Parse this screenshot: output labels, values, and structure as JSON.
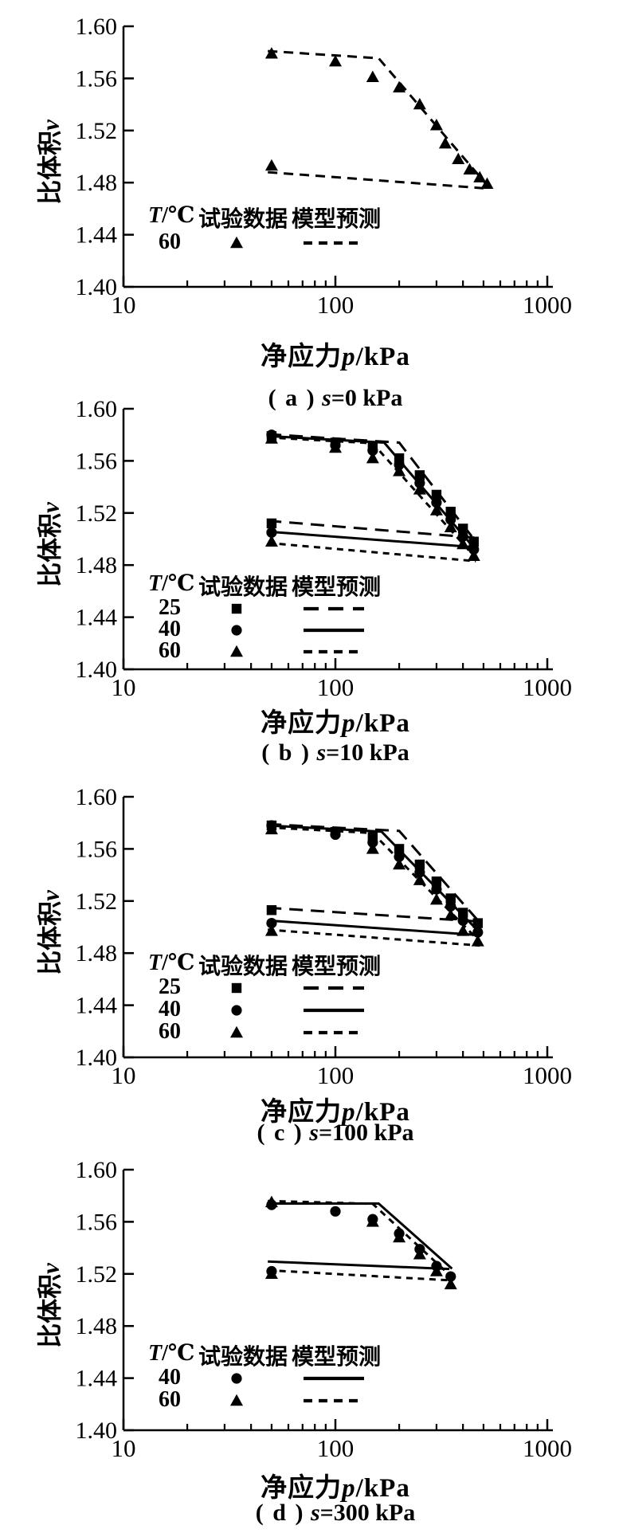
{
  "figure": {
    "background": "#ffffff",
    "ink": "#000000"
  },
  "axis": {
    "x_scale": "log",
    "x_range": [
      10,
      1000
    ],
    "y_range": [
      1.4,
      1.6
    ],
    "x_ticks": [
      "10",
      "100",
      "1000"
    ],
    "y_ticks": [
      "1.60",
      "1.56",
      "1.52",
      "1.48",
      "1.44",
      "1.40"
    ],
    "x_label_cn": "净应力",
    "x_label_var": "p",
    "x_label_unit": "/kPa",
    "y_label_cn": "比体积",
    "y_label_var": "v"
  },
  "legend_header": {
    "temp_var": "T",
    "temp_unit": "/℃",
    "data": "试验数据",
    "model": "模型预测"
  },
  "chart_data": [
    {
      "id": "a",
      "type": "line",
      "caption_bracket": "( a )",
      "caption_var": "s",
      "caption_rest": "=0 kPa",
      "suction_kPa": 0,
      "series": [
        {
          "temp": "60",
          "marker": "triangle",
          "line_style": "dashed",
          "exp_loading": [
            [
              50,
              1.579
            ],
            [
              100,
              1.573
            ],
            [
              150,
              1.561
            ],
            [
              200,
              1.553
            ],
            [
              250,
              1.54
            ],
            [
              300,
              1.524
            ],
            [
              330,
              1.51
            ],
            [
              380,
              1.498
            ],
            [
              430,
              1.49
            ],
            [
              480,
              1.484
            ],
            [
              520,
              1.479
            ]
          ],
          "exp_rebound": [
            [
              50,
              1.493
            ]
          ],
          "model_loading": [
            [
              48,
              1.581
            ],
            [
              160,
              1.5755
            ],
            [
              520,
              1.478
            ]
          ],
          "model_rebound": [
            [
              48,
              1.488
            ],
            [
              500,
              1.4757
            ]
          ]
        }
      ]
    },
    {
      "id": "b",
      "type": "line",
      "caption_bracket": "( b )",
      "caption_var": "s",
      "caption_rest": "=10 kPa",
      "suction_kPa": 10,
      "series": [
        {
          "temp": "25",
          "marker": "square",
          "line_style": "long-dash",
          "exp_loading": [
            [
              50,
              1.579
            ],
            [
              100,
              1.574
            ],
            [
              150,
              1.571
            ],
            [
              200,
              1.562
            ],
            [
              250,
              1.549
            ],
            [
              300,
              1.534
            ],
            [
              350,
              1.521
            ],
            [
              400,
              1.508
            ],
            [
              450,
              1.498
            ]
          ],
          "exp_rebound": [
            [
              50,
              1.512
            ]
          ],
          "model_loading": [
            [
              48,
              1.5805
            ],
            [
              200,
              1.574
            ],
            [
              460,
              1.498
            ]
          ],
          "model_rebound": [
            [
              48,
              1.514
            ],
            [
              460,
              1.501
            ]
          ]
        },
        {
          "temp": "40",
          "marker": "circle",
          "line_style": "solid",
          "exp_loading": [
            [
              50,
              1.58
            ],
            [
              100,
              1.572
            ],
            [
              150,
              1.568
            ],
            [
              200,
              1.557
            ],
            [
              250,
              1.543
            ],
            [
              300,
              1.528
            ],
            [
              350,
              1.515
            ],
            [
              400,
              1.502
            ],
            [
              450,
              1.492
            ]
          ],
          "exp_rebound": [
            [
              50,
              1.505
            ]
          ],
          "model_loading": [
            [
              48,
              1.579
            ],
            [
              170,
              1.574
            ],
            [
              455,
              1.4925
            ]
          ],
          "model_rebound": [
            [
              48,
              1.5057
            ],
            [
              455,
              1.4937
            ]
          ]
        },
        {
          "temp": "60",
          "marker": "triangle",
          "line_style": "short-dash",
          "exp_loading": [
            [
              50,
              1.577
            ],
            [
              100,
              1.57
            ],
            [
              150,
              1.562
            ],
            [
              200,
              1.552
            ],
            [
              250,
              1.538
            ],
            [
              300,
              1.522
            ],
            [
              350,
              1.509
            ],
            [
              400,
              1.496
            ],
            [
              450,
              1.487
            ]
          ],
          "exp_rebound": [
            [
              50,
              1.498
            ]
          ],
          "model_loading": [
            [
              48,
              1.578
            ],
            [
              150,
              1.5735
            ],
            [
              460,
              1.4853
            ]
          ],
          "model_rebound": [
            [
              48,
              1.497
            ],
            [
              460,
              1.483
            ]
          ]
        }
      ]
    },
    {
      "id": "c",
      "type": "line",
      "caption_bracket": "( c )",
      "caption_var": "s",
      "caption_rest": "=100 kPa",
      "suction_kPa": 100,
      "series": [
        {
          "temp": "25",
          "marker": "square",
          "line_style": "long-dash",
          "exp_loading": [
            [
              50,
              1.578
            ],
            [
              100,
              1.573
            ],
            [
              150,
              1.569
            ],
            [
              200,
              1.56
            ],
            [
              250,
              1.548
            ],
            [
              300,
              1.535
            ],
            [
              350,
              1.522
            ],
            [
              400,
              1.511
            ],
            [
              470,
              1.503
            ]
          ],
          "exp_rebound": [
            [
              50,
              1.513
            ]
          ],
          "model_loading": [
            [
              48,
              1.579
            ],
            [
              200,
              1.5738
            ],
            [
              480,
              1.5035
            ]
          ],
          "model_rebound": [
            [
              48,
              1.5148
            ],
            [
              480,
              1.5042
            ]
          ]
        },
        {
          "temp": "40",
          "marker": "circle",
          "line_style": "solid",
          "exp_loading": [
            [
              50,
              1.578
            ],
            [
              100,
              1.571
            ],
            [
              150,
              1.565
            ],
            [
              200,
              1.554
            ],
            [
              250,
              1.542
            ],
            [
              300,
              1.529
            ],
            [
              350,
              1.516
            ],
            [
              400,
              1.505
            ],
            [
              470,
              1.496
            ]
          ],
          "exp_rebound": [
            [
              50,
              1.503
            ]
          ],
          "model_loading": [
            [
              48,
              1.578
            ],
            [
              165,
              1.5733
            ],
            [
              475,
              1.4965
            ]
          ],
          "model_rebound": [
            [
              48,
              1.505
            ],
            [
              475,
              1.4938
            ]
          ]
        },
        {
          "temp": "60",
          "marker": "triangle",
          "line_style": "short-dash",
          "exp_loading": [
            [
              50,
              1.575
            ],
            [
              150,
              1.56
            ],
            [
              200,
              1.548
            ],
            [
              250,
              1.536
            ],
            [
              300,
              1.521
            ],
            [
              350,
              1.509
            ],
            [
              400,
              1.497
            ],
            [
              470,
              1.489
            ]
          ],
          "exp_rebound": [
            [
              50,
              1.497
            ]
          ],
          "model_loading": [
            [
              48,
              1.5765
            ],
            [
              150,
              1.5722
            ],
            [
              480,
              1.4888
            ]
          ],
          "model_rebound": [
            [
              48,
              1.498
            ],
            [
              480,
              1.4858
            ]
          ]
        }
      ]
    },
    {
      "id": "d",
      "type": "line",
      "caption_bracket": "( d )",
      "caption_var": "s",
      "caption_rest": "=300 kPa",
      "suction_kPa": 300,
      "series": [
        {
          "temp": "40",
          "marker": "circle",
          "line_style": "solid",
          "exp_loading": [
            [
              50,
              1.573
            ],
            [
              100,
              1.568
            ],
            [
              150,
              1.562
            ],
            [
              200,
              1.551
            ],
            [
              250,
              1.539
            ],
            [
              300,
              1.526
            ],
            [
              350,
              1.518
            ]
          ],
          "exp_rebound": [
            [
              50,
              1.522
            ]
          ],
          "model_loading": [
            [
              48,
              1.574
            ],
            [
              160,
              1.574
            ],
            [
              355,
              1.524
            ]
          ],
          "model_rebound": [
            [
              48,
              1.5295
            ],
            [
              345,
              1.5238
            ]
          ]
        },
        {
          "temp": "60",
          "marker": "triangle",
          "line_style": "short-dash",
          "exp_loading": [
            [
              50,
              1.575
            ],
            [
              150,
              1.56
            ],
            [
              200,
              1.548
            ],
            [
              250,
              1.535
            ],
            [
              300,
              1.522
            ],
            [
              350,
              1.512
            ]
          ],
          "exp_rebound": [
            [
              50,
              1.52
            ]
          ],
          "model_loading": [
            [
              48,
              1.576
            ],
            [
              150,
              1.5738
            ],
            [
              355,
              1.5175
            ]
          ],
          "model_rebound": [
            [
              48,
              1.5228
            ],
            [
              355,
              1.515
            ]
          ]
        }
      ]
    }
  ]
}
